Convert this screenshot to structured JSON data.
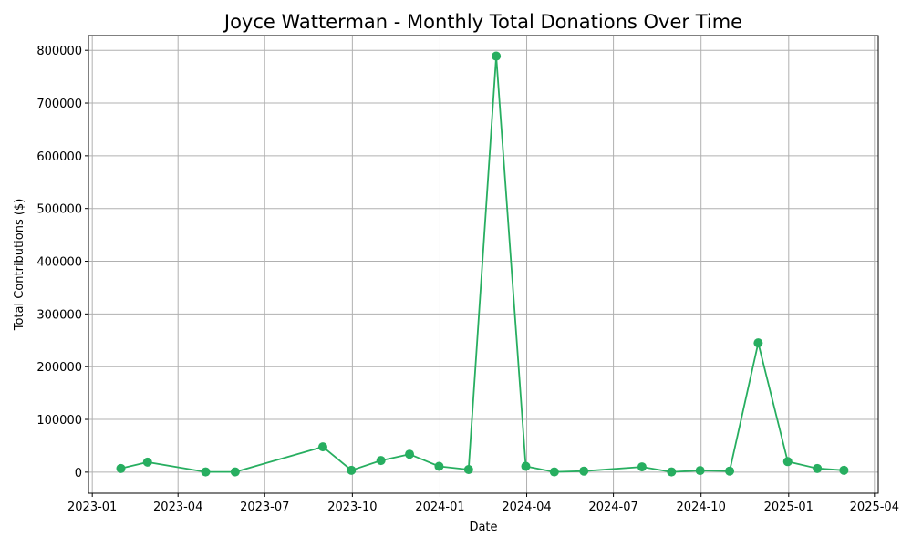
{
  "chart_data": {
    "type": "line",
    "title": "Joyce Watterman - Monthly Total Donations Over Time",
    "xlabel": "Date",
    "ylabel": "Total Contributions ($)",
    "grid": true,
    "x_ticks": [
      "2023-01",
      "2023-04",
      "2023-07",
      "2023-10",
      "2024-01",
      "2024-04",
      "2024-07",
      "2024-10",
      "2025-01",
      "2025-04"
    ],
    "y_ticks": [
      0,
      100000,
      200000,
      300000,
      400000,
      500000,
      600000,
      700000,
      800000
    ],
    "xlim": [
      "2022-12-28",
      "2025-04-05"
    ],
    "ylim": [
      -40000,
      828000
    ],
    "color": "#27ae60",
    "series": [
      {
        "x": [
          "2023-01-31",
          "2023-02-28",
          "2023-04-30",
          "2023-05-31",
          "2023-08-31",
          "2023-09-30",
          "2023-10-31",
          "2023-11-30",
          "2023-12-31",
          "2024-01-31",
          "2024-02-29",
          "2024-03-31",
          "2024-04-30",
          "2024-05-31",
          "2024-07-31",
          "2024-08-31",
          "2024-09-30",
          "2024-10-31",
          "2024-11-30",
          "2024-12-31",
          "2025-01-31",
          "2025-02-28"
        ],
        "y": [
          7000,
          19000,
          500,
          500,
          48000,
          3500,
          22000,
          34000,
          11000,
          5000,
          789000,
          11000,
          500,
          2000,
          10000,
          500,
          3000,
          2000,
          245000,
          20000,
          7000,
          3500
        ]
      }
    ]
  }
}
